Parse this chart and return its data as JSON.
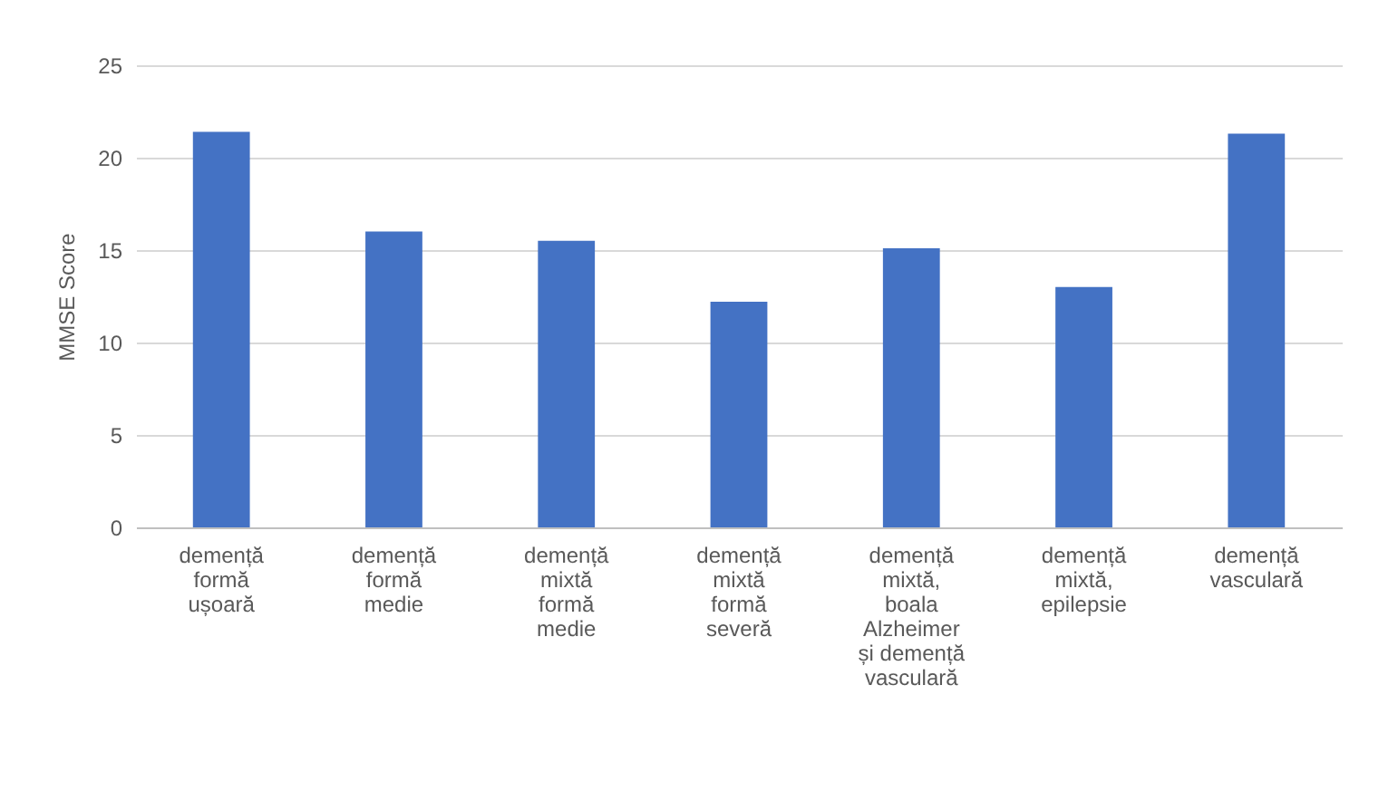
{
  "chart_data": {
    "type": "bar",
    "ylabel": "MMSE Score",
    "categories": [
      "demență formă ușoară",
      "demență formă medie",
      "demență mixtă formă medie",
      "demență mixtă formă severă",
      "demență mixtă, boala Alzheimer și demență vasculară",
      "demență mixtă, epilepsie",
      "demență vasculară"
    ],
    "values": [
      21.4,
      16.0,
      15.5,
      12.2,
      15.1,
      13.0,
      21.3
    ],
    "color": "#4472c4",
    "ylim": [
      0,
      25
    ],
    "yticks": [
      0,
      5,
      10,
      15,
      20,
      25
    ],
    "grid": "y"
  }
}
